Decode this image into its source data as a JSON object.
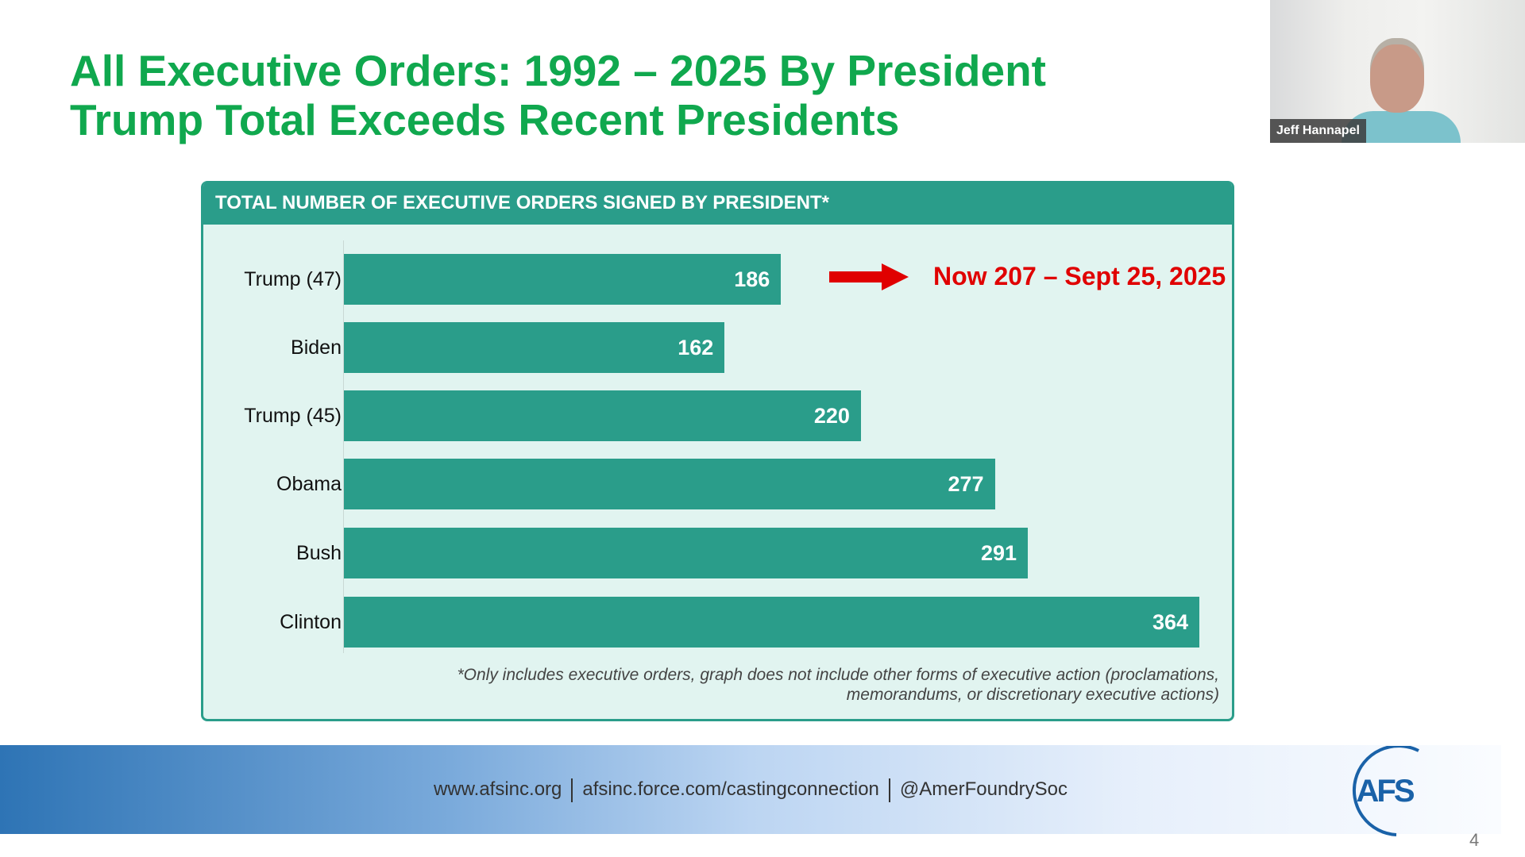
{
  "slide": {
    "title_line1": "All Executive Orders: 1992 – 2025 By President",
    "title_line2": "Trump Total Exceeds Recent Presidents",
    "page_number": "4",
    "title_color": "#10a84e"
  },
  "chart_data": {
    "type": "bar",
    "orientation": "horizontal",
    "title": "TOTAL NUMBER OF EXECUTIVE ORDERS SIGNED BY PRESIDENT*",
    "categories": [
      "Trump (47)",
      "Biden",
      "Trump (45)",
      "Obama",
      "Bush",
      "Clinton"
    ],
    "values": [
      186,
      162,
      220,
      277,
      291,
      364
    ],
    "value_labels": [
      "186",
      "162",
      "220",
      "277",
      "291",
      "364"
    ],
    "bar_color": "#2a9d8a",
    "annotation": {
      "text": "Now 207 – Sept 25, 2025",
      "target": "Trump (47)",
      "color": "#e00000",
      "icon": "right-arrow-icon"
    },
    "footnote_line1": "*Only includes executive orders, graph does not include other forms of executive action (proclamations,",
    "footnote_line2": "memorandums, or discretionary executive actions)"
  },
  "footer": {
    "link1": "www.afsinc.org",
    "link2": "afsinc.force.com/castingconnection",
    "link3": "@AmerFoundrySoc",
    "logo_text": "AFS"
  },
  "video": {
    "participant_name": "Jeff Hannapel"
  }
}
